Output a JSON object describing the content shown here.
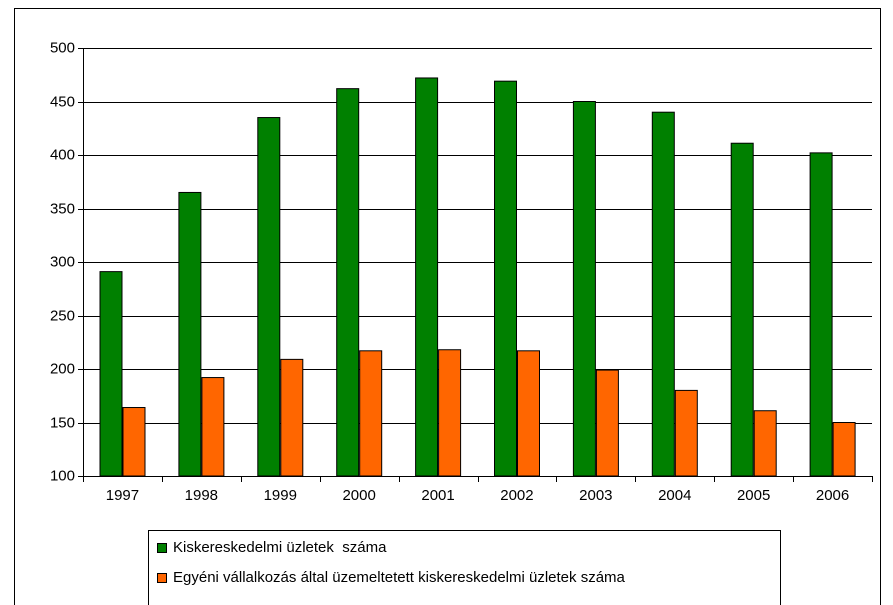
{
  "chart_data": {
    "type": "bar",
    "categories": [
      "1997",
      "1998",
      "1999",
      "2000",
      "2001",
      "2002",
      "2003",
      "2004",
      "2005",
      "2006"
    ],
    "series": [
      {
        "name": "Kiskereskedelmi üzletek  száma",
        "color": "#008000",
        "values": [
          291,
          365,
          435,
          462,
          472,
          469,
          450,
          440,
          411,
          402
        ]
      },
      {
        "name": "Egyéni vállalkozás által üzemeltetett kiskereskedelmi üzletek száma",
        "color": "#ff6600",
        "values": [
          164,
          192,
          209,
          217,
          218,
          217,
          199,
          180,
          161,
          150
        ]
      }
    ],
    "ylim": [
      100,
      500
    ],
    "yticks": [
      100,
      150,
      200,
      250,
      300,
      350,
      400,
      450,
      500
    ],
    "grid": true,
    "legend": "bottom"
  }
}
